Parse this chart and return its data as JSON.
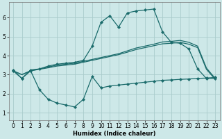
{
  "xlabel": "Humidex (Indice chaleur)",
  "bg_color": "#cde8e8",
  "grid_color": "#aacccc",
  "line_color": "#1a6b6b",
  "x_ticks": [
    0,
    1,
    2,
    3,
    4,
    5,
    6,
    7,
    8,
    9,
    10,
    11,
    12,
    13,
    14,
    15,
    16,
    17,
    18,
    19,
    20,
    21,
    22,
    23
  ],
  "y_ticks": [
    1,
    2,
    3,
    4,
    5,
    6
  ],
  "ylim": [
    0.6,
    6.8
  ],
  "xlim": [
    -0.5,
    23.5
  ],
  "line1_x": [
    0,
    1,
    2,
    3,
    4,
    5,
    6,
    7,
    8,
    9,
    10,
    11,
    12,
    13,
    14,
    15,
    16,
    17,
    18,
    19,
    20,
    21,
    22,
    23
  ],
  "line1_y": [
    3.25,
    2.8,
    3.25,
    3.3,
    3.45,
    3.55,
    3.6,
    3.65,
    3.75,
    4.5,
    5.75,
    6.1,
    5.5,
    6.25,
    6.35,
    6.4,
    6.45,
    5.25,
    4.7,
    4.65,
    4.35,
    3.3,
    2.8,
    2.8
  ],
  "line2_x": [
    0,
    1,
    2,
    3,
    4,
    5,
    6,
    7,
    8,
    9,
    10,
    11,
    12,
    13,
    14,
    15,
    16,
    17,
    18,
    19,
    20,
    21,
    22,
    23
  ],
  "line2_y": [
    3.2,
    3.0,
    3.2,
    3.3,
    3.4,
    3.5,
    3.55,
    3.6,
    3.7,
    3.8,
    3.9,
    4.0,
    4.1,
    4.25,
    4.4,
    4.5,
    4.6,
    4.72,
    4.75,
    4.8,
    4.7,
    4.5,
    3.35,
    2.8
  ],
  "line3_x": [
    0,
    1,
    2,
    3,
    4,
    5,
    6,
    7,
    8,
    9,
    10,
    11,
    12,
    13,
    14,
    15,
    16,
    17,
    18,
    19,
    20,
    21,
    22,
    23
  ],
  "line3_y": [
    3.2,
    3.0,
    3.2,
    3.28,
    3.36,
    3.45,
    3.5,
    3.55,
    3.65,
    3.75,
    3.85,
    3.95,
    4.05,
    4.18,
    4.32,
    4.42,
    4.52,
    4.62,
    4.65,
    4.7,
    4.6,
    4.42,
    3.28,
    2.75
  ],
  "line4_x": [
    0,
    1,
    2,
    3,
    4,
    5,
    6,
    7,
    8,
    9,
    10,
    11,
    12,
    13,
    14,
    15,
    16,
    17,
    18,
    19,
    20,
    21,
    22,
    23
  ],
  "line4_y": [
    3.2,
    2.8,
    3.2,
    2.2,
    1.7,
    1.5,
    1.4,
    1.3,
    1.7,
    2.9,
    2.3,
    2.4,
    2.45,
    2.5,
    2.55,
    2.6,
    2.65,
    2.7,
    2.72,
    2.75,
    2.77,
    2.8,
    2.82,
    2.85
  ]
}
